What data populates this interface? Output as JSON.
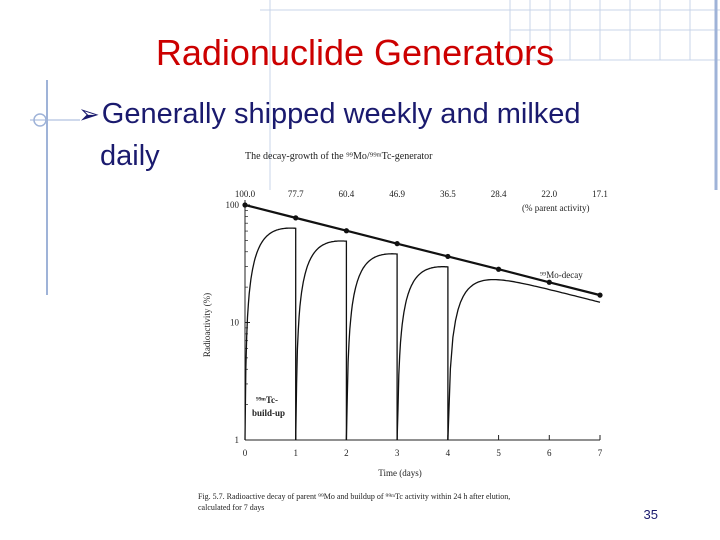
{
  "slide": {
    "title": "Radionuclide Generators",
    "bullet_main": "Generally shipped weekly and milked",
    "bullet_cont": "daily",
    "page_number": "35"
  },
  "figure": {
    "caption_title": "The decay-growth of the ⁹⁹Mo/⁹⁹ᵐTc-generator",
    "caption_bottom_1": "Fig. 5.7. Radioactive decay of parent ⁹⁹Mo and buildup of ⁹⁹ᵐTc activity within 24 h after elution,",
    "caption_bottom_2": "calculated for 7 days",
    "top_values": [
      "100.0",
      "77.7",
      "60.4",
      "46.9",
      "36.5",
      "28.4",
      "22.0",
      "17.1"
    ],
    "top_values_note": "(% parent activity)",
    "mo_label": "⁹⁹Mo-decay",
    "tc_label_1": "⁹⁹ᵐTc-",
    "tc_label_2": "build-up"
  },
  "chart_data": {
    "type": "line",
    "title": "The decay-growth of the ⁹⁹Mo/⁹⁹ᵐTc-generator",
    "xlabel": "Time (days)",
    "ylabel": "Radioactivity (%)",
    "xlim": [
      0,
      7
    ],
    "ylim": [
      1,
      100
    ],
    "y_scale": "log",
    "x_ticks": [
      "0",
      "1",
      "2",
      "3",
      "4",
      "5",
      "6",
      "7"
    ],
    "y_ticks": [
      "1",
      "10",
      "100"
    ],
    "series": [
      {
        "name": "⁹⁹Mo-decay",
        "x": [
          0,
          1,
          2,
          3,
          4,
          5,
          6,
          7
        ],
        "y": [
          100.0,
          77.7,
          60.4,
          46.9,
          36.5,
          28.4,
          22.0,
          17.1
        ]
      },
      {
        "name": "⁹⁹ᵐTc-build-up",
        "milking_days": [
          1,
          2,
          3,
          4
        ],
        "equilibrium_fraction": 0.87
      }
    ]
  }
}
